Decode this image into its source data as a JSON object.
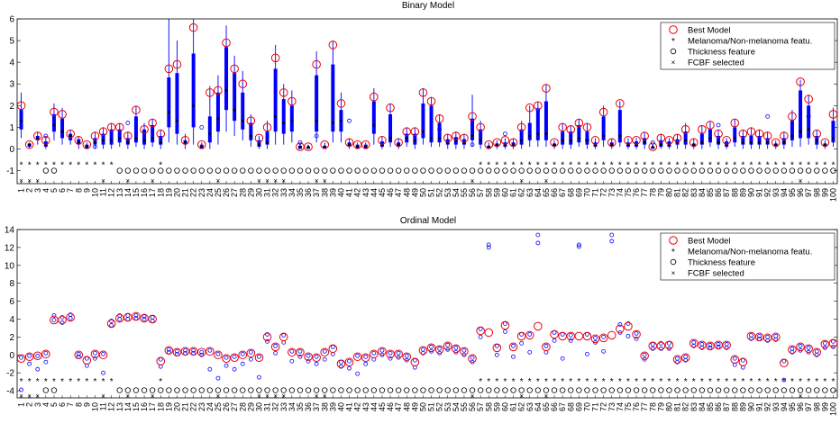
{
  "figure": {
    "legend_labels": [
      "Best Model",
      "Melanoma/Non-melanoma featu.",
      "Thickness feature",
      "FCBF selected"
    ],
    "colors": {
      "best_model": "#e8000b",
      "box": "#0000ff",
      "whisker": "#0000ff",
      "median": "#000000",
      "markers": "#000000",
      "axes": "#000000"
    }
  },
  "chart_data": [
    {
      "type": "box",
      "title": "Binary Model",
      "xlabel": "",
      "ylabel": "",
      "ylim": [
        -1.6,
        6
      ],
      "yticks": [
        -1,
        0,
        1,
        2,
        3,
        4,
        5,
        6
      ],
      "x": {
        "min": 1,
        "max": 100,
        "labels": "1-100"
      },
      "grid": false,
      "legend_position": "top-right",
      "best_model": [
        2.0,
        0.2,
        0.6,
        0.4,
        1.7,
        1.6,
        0.7,
        0.4,
        0.2,
        0.6,
        0.8,
        1.0,
        1.0,
        0.6,
        1.8,
        0.9,
        1.2,
        0.7,
        3.7,
        3.9,
        0.4,
        5.6,
        0.2,
        2.6,
        2.7,
        4.9,
        3.7,
        3.0,
        1.3,
        0.5,
        1.0,
        4.2,
        2.6,
        2.2,
        0.1,
        0.1,
        3.9,
        0.2,
        4.8,
        2.1,
        0.3,
        0.2,
        0.2,
        2.4,
        0.4,
        1.9,
        0.3,
        0.8,
        0.8,
        2.6,
        2.2,
        1.4,
        0.5,
        0.6,
        0.5,
        1.5,
        1.0,
        0.2,
        0.3,
        0.4,
        0.3,
        1.0,
        1.9,
        2.0,
        2.8,
        0.3,
        1.0,
        0.9,
        1.2,
        1.0,
        0.4,
        1.7,
        0.3,
        2.1,
        0.4,
        0.4,
        0.6,
        0.1,
        0.5,
        0.4,
        0.5,
        0.9,
        0.3,
        0.9,
        1.1,
        0.7,
        0.4,
        1.2,
        0.7,
        0.8,
        0.7,
        0.6,
        0.3,
        0.6,
        1.5,
        3.1,
        2.3,
        0.7,
        0.3,
        1.6
      ],
      "median": [
        1.3,
        0.2,
        0.5,
        0.2,
        1.1,
        0.8,
        0.6,
        0.3,
        0.1,
        0.3,
        0.4,
        0.4,
        0.5,
        0.3,
        0.5,
        0.4,
        0.5,
        0.3,
        1.7,
        1.3,
        0.3,
        2.0,
        0.1,
        0.7,
        1.4,
        2.7,
        1.8,
        1.3,
        0.6,
        0.2,
        0.3,
        1.5,
        1.2,
        1.3,
        0.1,
        0.1,
        1.3,
        0.1,
        1.2,
        1.3,
        0.2,
        0.1,
        0.1,
        1.1,
        0.2,
        0.5,
        0.2,
        0.5,
        0.4,
        0.8,
        0.5,
        0.5,
        0.3,
        0.4,
        0.3,
        0.6,
        0.4,
        0.1,
        0.2,
        0.2,
        0.2,
        0.4,
        0.6,
        0.7,
        0.7,
        0.2,
        0.4,
        0.4,
        0.5,
        0.4,
        0.2,
        0.6,
        0.2,
        0.6,
        0.2,
        0.2,
        0.3,
        0.1,
        0.2,
        0.2,
        0.3,
        0.4,
        0.2,
        0.3,
        0.5,
        0.3,
        0.2,
        0.5,
        0.3,
        0.3,
        0.3,
        0.3,
        0.2,
        0.3,
        0.6,
        0.8,
        0.9,
        0.4,
        0.2,
        0.5
      ],
      "q1": [
        0.9,
        0.1,
        0.4,
        0.1,
        0.8,
        0.5,
        0.4,
        0.2,
        0.0,
        0.2,
        0.2,
        0.2,
        0.3,
        0.2,
        0.3,
        0.2,
        0.3,
        0.2,
        1.0,
        0.7,
        0.2,
        1.0,
        0.0,
        0.3,
        0.8,
        1.8,
        1.3,
        0.9,
        0.4,
        0.1,
        0.2,
        0.8,
        0.7,
        0.8,
        0.0,
        0.0,
        0.8,
        0.0,
        0.8,
        0.8,
        0.1,
        0.0,
        0.0,
        0.7,
        0.1,
        0.3,
        0.1,
        0.3,
        0.2,
        0.5,
        0.3,
        0.3,
        0.2,
        0.2,
        0.2,
        0.4,
        0.2,
        0.0,
        0.1,
        0.1,
        0.1,
        0.2,
        0.4,
        0.4,
        0.4,
        0.1,
        0.2,
        0.2,
        0.3,
        0.2,
        0.1,
        0.4,
        0.1,
        0.3,
        0.1,
        0.1,
        0.2,
        0.0,
        0.1,
        0.1,
        0.2,
        0.2,
        0.1,
        0.2,
        0.3,
        0.2,
        0.1,
        0.3,
        0.2,
        0.2,
        0.2,
        0.2,
        0.1,
        0.2,
        0.4,
        0.5,
        0.5,
        0.2,
        0.1,
        0.3
      ],
      "q3": [
        1.8,
        0.25,
        0.6,
        0.35,
        1.6,
        1.4,
        0.7,
        0.45,
        0.2,
        0.5,
        0.7,
        0.9,
        0.9,
        0.5,
        1.5,
        0.9,
        1.1,
        0.6,
        3.3,
        3.5,
        0.4,
        4.4,
        0.2,
        1.5,
        2.6,
        4.7,
        3.5,
        2.6,
        1.2,
        0.4,
        0.8,
        3.7,
        2.3,
        2.0,
        0.15,
        0.1,
        3.4,
        0.15,
        3.9,
        1.8,
        0.3,
        0.2,
        0.2,
        2.2,
        0.35,
        1.6,
        0.3,
        0.7,
        0.7,
        2.1,
        2.0,
        1.2,
        0.45,
        0.55,
        0.45,
        1.4,
        0.9,
        0.15,
        0.25,
        0.3,
        0.3,
        0.9,
        1.2,
        1.8,
        2.2,
        0.25,
        0.8,
        0.8,
        1.1,
        0.8,
        0.3,
        1.5,
        0.3,
        1.8,
        0.3,
        0.35,
        0.5,
        0.1,
        0.4,
        0.35,
        0.45,
        0.8,
        0.25,
        0.7,
        0.9,
        0.6,
        0.35,
        1.0,
        0.6,
        0.6,
        0.6,
        0.5,
        0.25,
        0.5,
        1.3,
        2.7,
        2.0,
        0.6,
        0.25,
        1.3
      ],
      "whisker_low": [
        0.5,
        0.0,
        0.2,
        0.0,
        0.4,
        0.2,
        0.2,
        0.0,
        0.0,
        0.0,
        0.0,
        0.0,
        0.1,
        0.0,
        0.1,
        0.0,
        0.1,
        0.0,
        0.3,
        0.2,
        0.0,
        0.2,
        0.0,
        0.0,
        0.2,
        0.8,
        0.6,
        0.4,
        0.1,
        0.0,
        0.0,
        0.2,
        0.2,
        0.3,
        0.0,
        0.0,
        0.3,
        0.0,
        0.3,
        0.3,
        0.0,
        0.0,
        0.0,
        0.2,
        0.0,
        0.1,
        0.0,
        0.1,
        0.0,
        0.2,
        0.1,
        0.1,
        0.0,
        0.0,
        0.0,
        0.1,
        0.0,
        0.0,
        0.0,
        0.0,
        0.0,
        0.0,
        0.1,
        0.1,
        0.1,
        0.0,
        0.0,
        0.0,
        0.1,
        0.0,
        0.0,
        0.1,
        0.0,
        0.1,
        0.0,
        0.0,
        0.0,
        0.0,
        0.0,
        0.0,
        0.0,
        0.0,
        0.0,
        0.0,
        0.1,
        0.0,
        0.0,
        0.1,
        0.0,
        0.0,
        0.0,
        0.0,
        0.0,
        0.0,
        0.1,
        0.1,
        0.2,
        0.0,
        0.0,
        0.1
      ],
      "whisker_high": [
        2.6,
        0.3,
        0.8,
        0.6,
        2.1,
        1.9,
        0.9,
        0.6,
        0.3,
        0.8,
        1.0,
        1.2,
        1.2,
        0.8,
        2.0,
        1.2,
        1.4,
        0.9,
        6.0,
        5.0,
        0.7,
        6.0,
        0.3,
        2.9,
        3.4,
        5.7,
        4.3,
        3.6,
        1.6,
        0.6,
        1.3,
        4.8,
        3.0,
        2.7,
        0.3,
        0.2,
        4.5,
        0.3,
        5.0,
        2.6,
        0.5,
        0.3,
        0.3,
        2.8,
        0.6,
        2.1,
        0.5,
        1.0,
        1.0,
        2.8,
        2.4,
        1.6,
        0.7,
        0.8,
        0.7,
        2.5,
        1.3,
        0.3,
        0.4,
        0.5,
        0.5,
        1.3,
        2.0,
        2.2,
        3.0,
        0.4,
        1.2,
        1.1,
        1.4,
        1.2,
        0.5,
        2.0,
        0.5,
        2.2,
        0.5,
        0.5,
        0.8,
        0.2,
        0.7,
        0.5,
        0.7,
        1.2,
        0.5,
        1.1,
        1.3,
        0.9,
        0.5,
        1.4,
        0.9,
        1.0,
        0.9,
        0.8,
        0.4,
        0.8,
        1.8,
        3.2,
        2.5,
        0.9,
        0.4,
        1.9
      ],
      "outliers": [
        {
          "x": 4,
          "y": 0.6
        },
        {
          "x": 10,
          "y": 0.1
        },
        {
          "x": 14,
          "y": 1.2
        },
        {
          "x": 23,
          "y": 1.0
        },
        {
          "x": 35,
          "y": 0.3
        },
        {
          "x": 37,
          "y": 0.6
        },
        {
          "x": 41,
          "y": 1.3
        },
        {
          "x": 52,
          "y": 0.9
        },
        {
          "x": 56,
          "y": 0.2
        },
        {
          "x": 60,
          "y": 0.7
        },
        {
          "x": 64,
          "y": 1.8
        },
        {
          "x": 70,
          "y": 0.4
        },
        {
          "x": 78,
          "y": 0.3
        },
        {
          "x": 86,
          "y": 1.1
        },
        {
          "x": 92,
          "y": 1.5
        },
        {
          "x": 97,
          "y": 1.5
        }
      ],
      "melanoma_features": [
        1,
        2,
        3,
        4,
        5,
        6,
        7,
        8,
        9,
        10,
        11,
        12,
        18,
        57,
        58,
        59,
        60,
        61,
        62,
        63,
        64,
        65,
        66,
        67,
        68,
        69,
        70,
        71,
        72,
        73,
        74,
        75,
        76,
        77,
        78,
        79,
        80,
        81,
        82,
        83,
        84,
        85,
        86,
        87,
        88,
        89,
        90,
        91,
        92,
        93,
        94,
        95,
        96,
        97,
        98,
        99,
        100
      ],
      "thickness_features": [
        4,
        5,
        13,
        14,
        15,
        16,
        17,
        18,
        19,
        20,
        21,
        22,
        23,
        24,
        25,
        26,
        27,
        28,
        29,
        30,
        31,
        32,
        33,
        34,
        35,
        36,
        37,
        38,
        39,
        40,
        41,
        42,
        43,
        44,
        45,
        46,
        47,
        48,
        49,
        50,
        51,
        52,
        53,
        54,
        55,
        56,
        57,
        58,
        59,
        60,
        61,
        62,
        63,
        64,
        65,
        66,
        67,
        68,
        69,
        70,
        71,
        72,
        73,
        74,
        75,
        76,
        77,
        78,
        79,
        80,
        81,
        82,
        83,
        84,
        85,
        86,
        87,
        88,
        89,
        90,
        91,
        92,
        93,
        94,
        95,
        96,
        97,
        98,
        99,
        100
      ],
      "fcbf_selected": [
        1,
        2,
        3,
        11,
        14,
        17,
        25,
        30,
        31,
        32,
        33,
        37,
        38,
        56,
        62,
        65,
        96
      ]
    },
    {
      "type": "scatter",
      "title": "Ordinal Model",
      "xlabel": "",
      "ylabel": "",
      "ylim": [
        -4.8,
        14
      ],
      "yticks": [
        -4,
        -2,
        0,
        2,
        4,
        6,
        8,
        10,
        12,
        14
      ],
      "x": {
        "min": 1,
        "max": 100,
        "labels": "1-100"
      },
      "grid": false,
      "legend_position": "top-right",
      "best_model": [
        -0.4,
        -0.2,
        -0.1,
        0.1,
        3.9,
        3.9,
        4.2,
        0.0,
        -0.6,
        0.1,
        0.0,
        3.5,
        4.1,
        4.2,
        4.3,
        4.1,
        4.0,
        -0.7,
        0.5,
        0.3,
        0.4,
        0.4,
        0.3,
        0.4,
        0.0,
        -0.4,
        -0.3,
        0.0,
        0.2,
        -0.3,
        2.0,
        0.9,
        2.0,
        0.3,
        0.3,
        -0.2,
        -0.3,
        0.3,
        0.7,
        -1.0,
        -0.8,
        -0.2,
        -0.3,
        0.1,
        0.4,
        0.1,
        0.1,
        -0.2,
        -0.8,
        0.5,
        0.8,
        0.6,
        1.0,
        0.7,
        0.4,
        -0.4,
        2.7,
        2.5,
        0.8,
        3.3,
        0.9,
        2.1,
        2.2,
        3.2,
        0.9,
        2.3,
        2.1,
        2.1,
        2.1,
        2.1,
        1.8,
        1.9,
        2.2,
        2.9,
        3.2,
        2.3,
        -0.1,
        1.0,
        1.0,
        1.1,
        -0.5,
        -0.3,
        1.3,
        1.1,
        1.0,
        1.1,
        1.1,
        -0.5,
        -0.8,
        2.1,
        2.0,
        1.9,
        2.0,
        -0.9,
        0.6,
        0.9,
        0.7,
        0.3,
        1.2,
        1.3
      ],
      "blue_upper": [
        -0.3,
        -0.1,
        -0.1,
        0.2,
        4.4,
        4.2,
        4.5,
        0.1,
        -0.4,
        0.2,
        0.1,
        3.8,
        4.4,
        4.4,
        4.4,
        4.3,
        4.2,
        -0.5,
        0.6,
        0.4,
        0.5,
        0.5,
        0.3,
        0.5,
        0.1,
        -0.3,
        -0.2,
        0.1,
        0.3,
        -0.2,
        2.3,
        1.0,
        2.2,
        0.4,
        0.4,
        -0.1,
        -0.2,
        0.4,
        0.9,
        -0.8,
        -0.7,
        -0.1,
        -0.2,
        0.2,
        0.5,
        0.2,
        0.2,
        -0.1,
        -0.6,
        0.6,
        0.9,
        0.7,
        1.1,
        0.8,
        0.5,
        -0.3,
        2.9,
        12.3,
        1.0,
        3.5,
        1.0,
        2.3,
        2.3,
        13.4,
        1.0,
        2.5,
        2.3,
        2.2,
        12.3,
        2.3,
        1.9,
        2.0,
        13.4,
        3.4,
        3.5,
        2.4,
        0.0,
        1.2,
        1.3,
        1.3,
        -0.4,
        -0.2,
        1.4,
        1.2,
        1.1,
        1.2,
        1.2,
        -0.4,
        -0.6,
        2.2,
        2.1,
        2.0,
        2.1,
        -0.7,
        0.7,
        1.0,
        0.8,
        0.4,
        1.3,
        1.5
      ],
      "blue_lower": [
        -3.9,
        -1.0,
        -1.6,
        -0.8,
        3.9,
        3.6,
        4.1,
        -0.2,
        -1.2,
        -0.4,
        -2.0,
        3.3,
        4.0,
        4.0,
        4.1,
        4.0,
        3.8,
        -1.3,
        0.3,
        0.1,
        0.2,
        0.2,
        0.0,
        -1.6,
        -2.6,
        -1.2,
        -1.6,
        -1.0,
        -0.5,
        -2.5,
        1.5,
        0.2,
        1.4,
        -0.7,
        -0.2,
        -0.7,
        -1.0,
        -0.5,
        0.1,
        -1.3,
        -1.5,
        -2.1,
        -1.0,
        -0.5,
        0.0,
        -0.4,
        -0.3,
        -0.6,
        -1.4,
        0.2,
        0.4,
        0.2,
        0.6,
        0.3,
        0.0,
        -0.8,
        2.0,
        12.0,
        0.0,
        2.6,
        -0.2,
        1.3,
        0.3,
        12.5,
        0.3,
        1.6,
        -0.4,
        1.6,
        12.1,
        0.1,
        1.4,
        0.4,
        12.7,
        2.5,
        2.1,
        1.8,
        -0.5,
        0.7,
        0.7,
        0.7,
        -0.8,
        -0.6,
        1.0,
        0.8,
        0.8,
        0.9,
        0.8,
        -1.1,
        -1.4,
        1.8,
        1.8,
        1.6,
        1.7,
        -2.8,
        0.3,
        0.5,
        0.3,
        0.0,
        0.8,
        0.9
      ],
      "melanoma_features": [
        1,
        2,
        3,
        4,
        5,
        6,
        7,
        8,
        9,
        10,
        11,
        12,
        18,
        57,
        58,
        59,
        60,
        61,
        62,
        63,
        64,
        65,
        66,
        67,
        68,
        69,
        70,
        71,
        72,
        73,
        74,
        75,
        76,
        77,
        78,
        79,
        80,
        81,
        82,
        83,
        84,
        85,
        86,
        87,
        88,
        89,
        90,
        91,
        92,
        93,
        94,
        95,
        96,
        97,
        98,
        99,
        100
      ],
      "thickness_features": [
        4,
        5,
        13,
        14,
        15,
        16,
        17,
        18,
        19,
        20,
        21,
        22,
        23,
        24,
        25,
        26,
        27,
        28,
        29,
        30,
        31,
        32,
        33,
        34,
        35,
        36,
        37,
        38,
        39,
        40,
        41,
        42,
        43,
        44,
        45,
        46,
        47,
        48,
        49,
        50,
        51,
        52,
        53,
        54,
        55,
        56,
        57,
        58,
        59,
        60,
        61,
        62,
        63,
        64,
        65,
        66,
        67,
        68,
        69,
        70,
        71,
        72,
        73,
        74,
        75,
        76,
        77,
        78,
        79,
        80,
        81,
        82,
        83,
        84,
        85,
        86,
        87,
        88,
        89,
        90,
        91,
        92,
        93,
        94,
        95,
        96,
        97,
        98,
        99,
        100
      ],
      "fcbf_selected": [
        1,
        2,
        3,
        11,
        14,
        17,
        25,
        30,
        31,
        32,
        33,
        37,
        38,
        56,
        62,
        65,
        96
      ]
    }
  ]
}
